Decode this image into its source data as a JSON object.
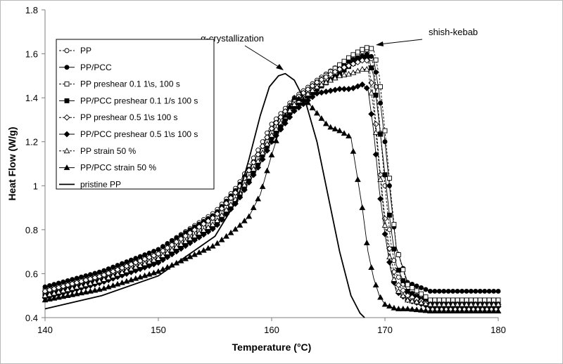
{
  "chart_data": {
    "type": "line",
    "xlabel": "Temperature (°C)",
    "ylabel": "Heat Flow (W/g)",
    "xlim": [
      140,
      180
    ],
    "ylim": [
      0.4,
      1.8
    ],
    "x_ticks": [
      "140",
      "150",
      "160",
      "170",
      "180"
    ],
    "y_ticks": [
      "0.4",
      "0.6",
      "0.8",
      "1",
      "1.2",
      "1.4",
      "1.6",
      "1.8"
    ],
    "grid": false,
    "legend_position": "top-left",
    "annotations": [
      "α-crystallization",
      "shish-kebab"
    ],
    "series": [
      {
        "name": "PP",
        "style": "dashed",
        "marker": "open-circle",
        "x": [
          140,
          145,
          150,
          155,
          157,
          159,
          160,
          162,
          164,
          166,
          167,
          168,
          168.5,
          169,
          169.5,
          170,
          170.5,
          171,
          172,
          174,
          176,
          180
        ],
        "y": [
          0.53,
          0.6,
          0.71,
          0.88,
          1.0,
          1.18,
          1.28,
          1.4,
          1.48,
          1.55,
          1.58,
          1.61,
          1.62,
          1.55,
          1.3,
          1.0,
          0.75,
          0.6,
          0.52,
          0.47,
          0.47,
          0.47
        ]
      },
      {
        "name": "PP/PCC",
        "style": "solid",
        "marker": "filled-circle",
        "x": [
          140,
          145,
          150,
          155,
          157,
          159,
          160,
          162,
          164,
          166,
          167,
          168,
          168.5,
          169,
          169.5,
          170,
          170.5,
          171,
          172,
          174,
          176,
          180
        ],
        "y": [
          0.54,
          0.61,
          0.71,
          0.87,
          0.99,
          1.16,
          1.26,
          1.39,
          1.47,
          1.54,
          1.57,
          1.59,
          1.6,
          1.58,
          1.42,
          1.2,
          0.95,
          0.72,
          0.56,
          0.52,
          0.52,
          0.52
        ]
      },
      {
        "name": "PP preshear 0.1 1\\s, 100 s",
        "style": "dashed",
        "marker": "open-square",
        "x": [
          140,
          145,
          150,
          155,
          157,
          159,
          160,
          162,
          164,
          166,
          167,
          168,
          168.5,
          169,
          169.5,
          170,
          170.5,
          171,
          172,
          174,
          176,
          180
        ],
        "y": [
          0.51,
          0.58,
          0.68,
          0.84,
          0.96,
          1.14,
          1.24,
          1.38,
          1.47,
          1.55,
          1.59,
          1.62,
          1.63,
          1.62,
          1.5,
          1.25,
          0.98,
          0.72,
          0.55,
          0.48,
          0.48,
          0.48
        ]
      },
      {
        "name": "PP/PCC preshear 0.1 1/s 100 s",
        "style": "solid",
        "marker": "filled-square",
        "x": [
          140,
          145,
          150,
          155,
          157,
          159,
          160,
          162,
          164,
          166,
          167,
          168,
          168.5,
          169,
          169.5,
          170,
          170.5,
          171,
          172,
          174,
          176,
          180
        ],
        "y": [
          0.5,
          0.57,
          0.66,
          0.82,
          0.94,
          1.12,
          1.22,
          1.36,
          1.44,
          1.51,
          1.55,
          1.58,
          1.59,
          1.5,
          1.28,
          1.05,
          0.82,
          0.64,
          0.52,
          0.46,
          0.46,
          0.46
        ]
      },
      {
        "name": "PP preshear 0.5 1\\s 100 s",
        "style": "dashed",
        "marker": "open-diamond",
        "x": [
          140,
          145,
          150,
          155,
          157,
          159,
          160,
          162,
          164,
          166,
          167,
          168,
          168.5,
          169,
          169.5,
          170,
          170.5,
          171,
          172,
          174,
          176,
          180
        ],
        "y": [
          0.52,
          0.59,
          0.69,
          0.86,
          0.98,
          1.16,
          1.26,
          1.39,
          1.47,
          1.53,
          1.55,
          1.57,
          1.57,
          1.4,
          1.1,
          0.85,
          0.68,
          0.56,
          0.5,
          0.46,
          0.46,
          0.46
        ]
      },
      {
        "name": "PP/PCC preshear 0.5 1\\s 100 s",
        "style": "solid",
        "marker": "filled-diamond",
        "x": [
          140,
          145,
          150,
          155,
          157,
          159,
          160,
          162,
          164,
          166,
          167,
          168,
          168.5,
          169,
          169.5,
          170,
          170.5,
          171,
          172,
          174,
          176,
          180
        ],
        "y": [
          0.49,
          0.56,
          0.65,
          0.81,
          0.93,
          1.1,
          1.2,
          1.34,
          1.42,
          1.44,
          1.44,
          1.46,
          1.44,
          1.25,
          0.98,
          0.78,
          0.62,
          0.52,
          0.48,
          0.45,
          0.45,
          0.45
        ]
      },
      {
        "name": "PP strain 50 %",
        "style": "dashed",
        "marker": "open-triangle",
        "x": [
          140,
          145,
          150,
          155,
          157,
          159,
          160,
          162,
          164,
          166,
          167,
          168,
          168.5,
          169,
          169.5,
          170,
          170.5,
          171,
          172,
          174,
          176,
          180
        ],
        "y": [
          0.5,
          0.57,
          0.67,
          0.83,
          0.95,
          1.13,
          1.23,
          1.37,
          1.45,
          1.5,
          1.51,
          1.53,
          1.53,
          1.35,
          1.08,
          0.82,
          0.64,
          0.53,
          0.48,
          0.46,
          0.46,
          0.46
        ]
      },
      {
        "name": "PP/PCC strain 50 %",
        "style": "solid",
        "marker": "filled-triangle",
        "x": [
          140,
          145,
          150,
          155,
          157,
          158,
          159,
          160,
          161,
          162,
          163,
          164,
          165,
          166,
          167,
          168,
          168.5,
          169,
          169.5,
          170,
          171,
          172,
          174,
          176,
          180
        ],
        "y": [
          0.48,
          0.53,
          0.61,
          0.73,
          0.81,
          0.86,
          0.96,
          1.14,
          1.3,
          1.4,
          1.39,
          1.33,
          1.27,
          1.25,
          1.22,
          0.9,
          0.7,
          0.58,
          0.5,
          0.46,
          0.44,
          0.44,
          0.43,
          0.43,
          0.43
        ]
      },
      {
        "name": "pristine PP",
        "style": "solid",
        "marker": "none",
        "x": [
          140,
          145,
          150,
          155,
          157,
          158,
          159,
          159.8,
          160.6,
          161.2,
          162,
          163,
          164,
          165,
          166,
          167,
          167.8,
          168.2
        ],
        "y": [
          0.44,
          0.5,
          0.59,
          0.77,
          0.94,
          1.12,
          1.32,
          1.45,
          1.5,
          1.51,
          1.48,
          1.38,
          1.2,
          0.95,
          0.7,
          0.5,
          0.42,
          0.4
        ]
      }
    ]
  }
}
